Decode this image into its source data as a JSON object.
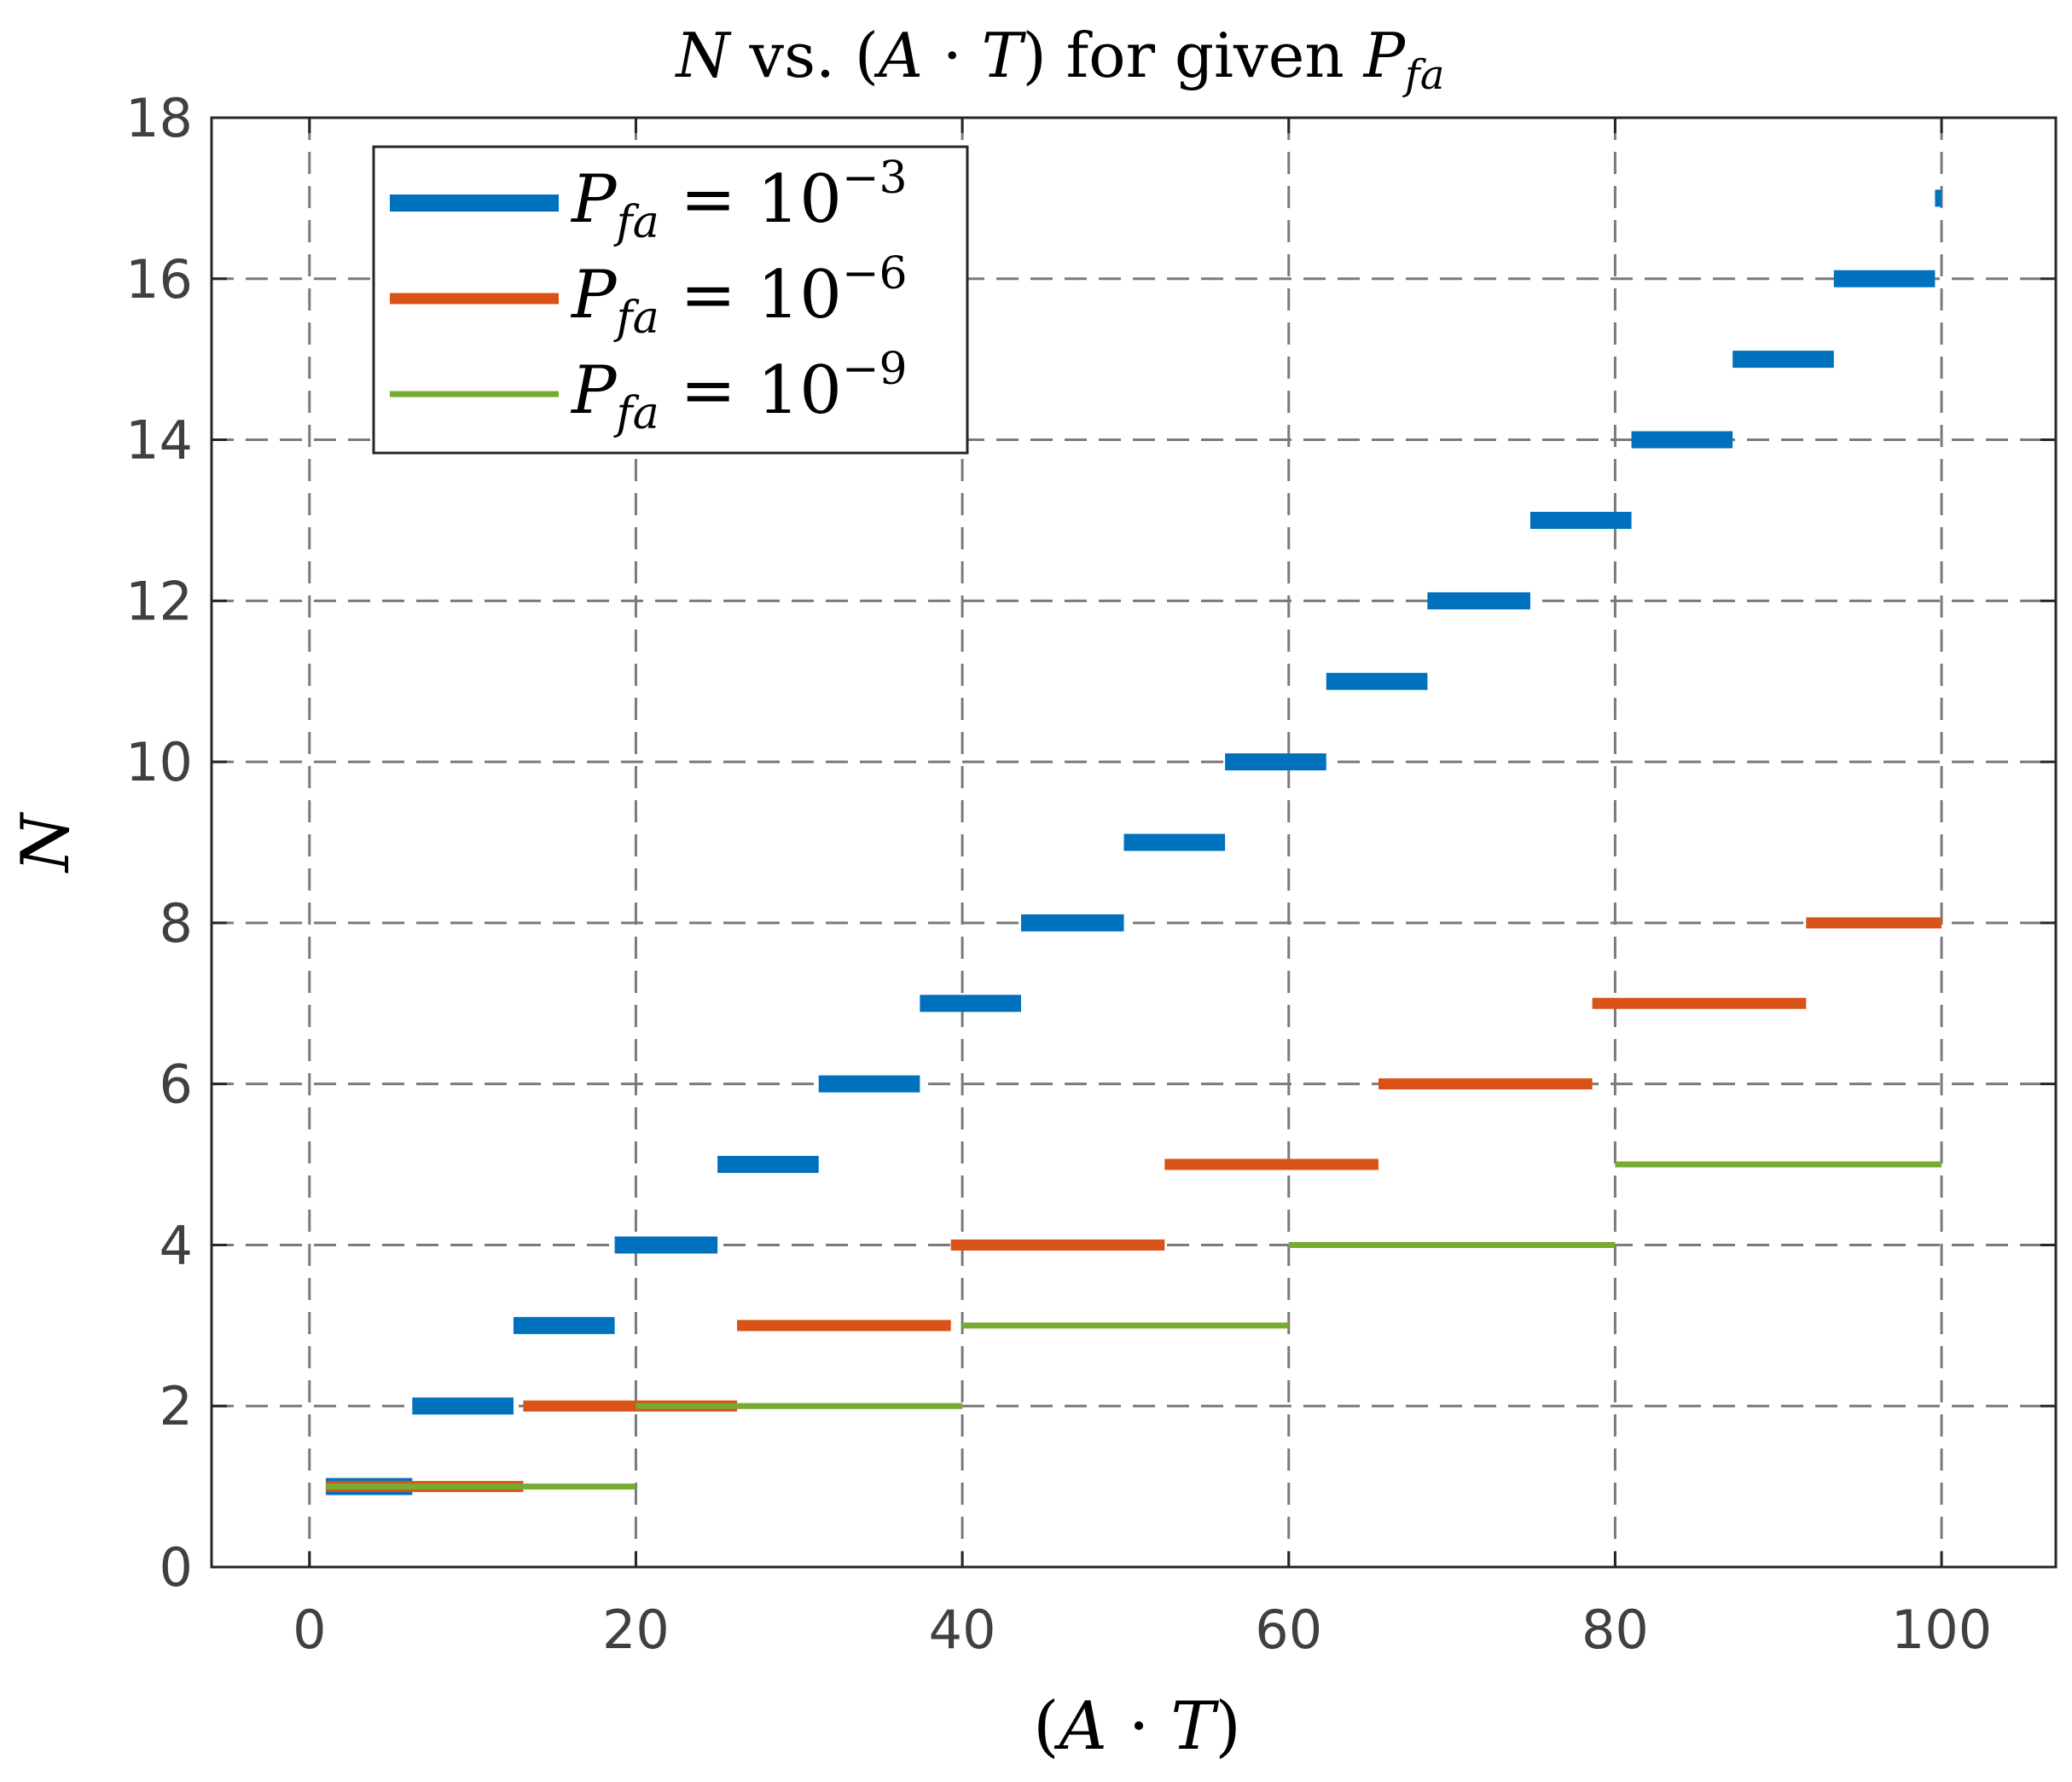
{
  "chart_data": {
    "type": "line",
    "title": {
      "var_n": "N",
      "vs": " vs. ",
      "lparen": "(",
      "var_a": "A",
      "dot": " · ",
      "var_t": "T",
      "rparen": ")",
      "for_given": " for given ",
      "var_p": "P",
      "sub_fa": "fa"
    },
    "xlabel": {
      "lparen": "(",
      "var_a": "A",
      "dot": " · ",
      "var_t": "T",
      "rparen": ")"
    },
    "ylabel": "N",
    "xlim": [
      -6,
      107
    ],
    "ylim": [
      0,
      18
    ],
    "xticks": [
      0,
      20,
      40,
      60,
      80,
      100
    ],
    "yticks": [
      0,
      2,
      4,
      6,
      8,
      10,
      12,
      14,
      16,
      18
    ],
    "grid": true,
    "legend_position": "top-left",
    "series": [
      {
        "name": "P_fa = 10^-3",
        "label": {
          "p": "P",
          "sub": "fa",
          "eq": " = 10",
          "exp": "−3"
        },
        "color": "#0072BD",
        "weight": "thick",
        "segments": [
          {
            "x": [
              1.0,
              6.3
            ],
            "y": 1
          },
          {
            "x": [
              6.3,
              12.5
            ],
            "y": 2
          },
          {
            "x": [
              12.5,
              18.7
            ],
            "y": 3
          },
          {
            "x": [
              18.7,
              25.0
            ],
            "y": 4
          },
          {
            "x": [
              25.0,
              31.2
            ],
            "y": 5
          },
          {
            "x": [
              31.2,
              37.4
            ],
            "y": 6
          },
          {
            "x": [
              37.4,
              43.6
            ],
            "y": 7
          },
          {
            "x": [
              43.6,
              49.9
            ],
            "y": 8
          },
          {
            "x": [
              49.9,
              56.1
            ],
            "y": 9
          },
          {
            "x": [
              56.1,
              62.3
            ],
            "y": 10
          },
          {
            "x": [
              62.3,
              68.5
            ],
            "y": 11
          },
          {
            "x": [
              68.5,
              74.8
            ],
            "y": 12
          },
          {
            "x": [
              74.8,
              81.0
            ],
            "y": 13
          },
          {
            "x": [
              81.0,
              87.2
            ],
            "y": 14
          },
          {
            "x": [
              87.2,
              93.4
            ],
            "y": 15
          },
          {
            "x": [
              93.4,
              99.6
            ],
            "y": 16
          },
          {
            "x": [
              99.6,
              100.0
            ],
            "y": 17
          }
        ]
      },
      {
        "name": "P_fa = 10^-6",
        "label": {
          "p": "P",
          "sub": "fa",
          "eq": " = 10",
          "exp": "−6"
        },
        "color": "#D95319",
        "weight": "medium",
        "segments": [
          {
            "x": [
              1.0,
              13.1
            ],
            "y": 1
          },
          {
            "x": [
              13.1,
              26.2
            ],
            "y": 2
          },
          {
            "x": [
              26.2,
              39.3
            ],
            "y": 3
          },
          {
            "x": [
              39.3,
              52.4
            ],
            "y": 4
          },
          {
            "x": [
              52.4,
              65.5
            ],
            "y": 5
          },
          {
            "x": [
              65.5,
              78.6
            ],
            "y": 6
          },
          {
            "x": [
              78.6,
              91.7
            ],
            "y": 7
          },
          {
            "x": [
              91.7,
              100.0
            ],
            "y": 8
          }
        ]
      },
      {
        "name": "P_fa = 10^-9",
        "label": {
          "p": "P",
          "sub": "fa",
          "eq": " = 10",
          "exp": "−9"
        },
        "color": "#77AC30",
        "weight": "thin",
        "segments": [
          {
            "x": [
              1.0,
              20.0
            ],
            "y": 1
          },
          {
            "x": [
              20.0,
              40.0
            ],
            "y": 2
          },
          {
            "x": [
              40.0,
              60.0
            ],
            "y": 3
          },
          {
            "x": [
              60.0,
              80.0
            ],
            "y": 4
          },
          {
            "x": [
              80.0,
              100.0
            ],
            "y": 5
          }
        ]
      }
    ]
  }
}
